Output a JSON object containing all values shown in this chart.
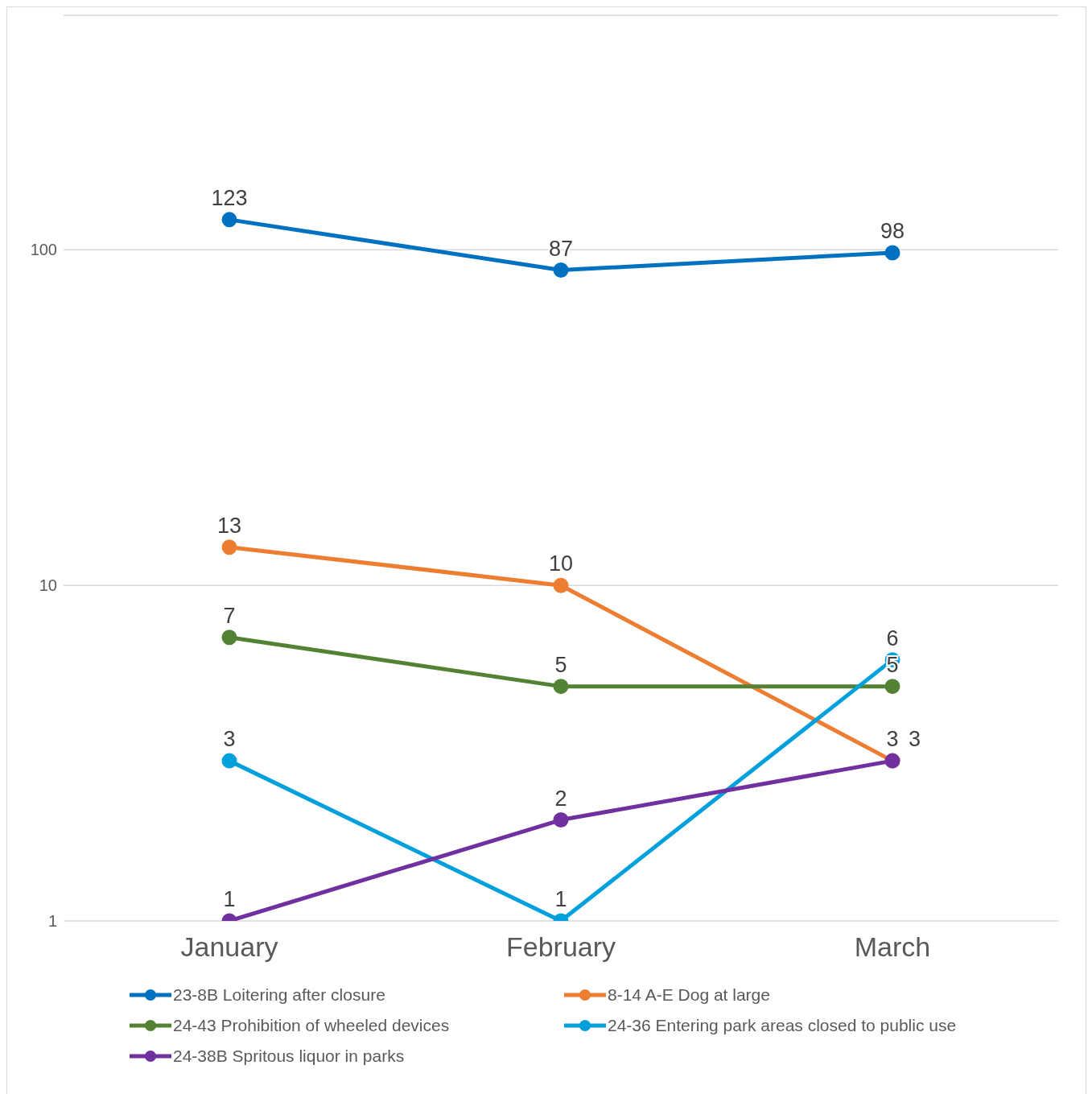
{
  "chart_data": {
    "type": "line",
    "categories": [
      "January",
      "February",
      "March"
    ],
    "series": [
      {
        "name": "23-8B Loitering after closure",
        "color": "#0070c0",
        "values": [
          123,
          87,
          98
        ]
      },
      {
        "name": "8-14 A-E Dog at large",
        "color": "#ed7d31",
        "values": [
          13,
          10,
          3
        ]
      },
      {
        "name": "24-43 Prohibition of wheeled devices",
        "color": "#548235",
        "values": [
          7,
          5,
          5
        ]
      },
      {
        "name": "24-36 Entering park areas closed to public use",
        "color": "#00a0dc",
        "values": [
          3,
          1,
          6
        ]
      },
      {
        "name": "24-38B Spritous liquor in parks",
        "color": "#7030a0",
        "values": [
          1,
          2,
          3
        ]
      }
    ],
    "log": true,
    "ylim": [
      1,
      500
    ],
    "yticks": [
      1,
      10,
      100
    ],
    "grid": "y",
    "legend": "bottom",
    "marker": "circle",
    "line_style": "solid",
    "data_labels": true
  }
}
